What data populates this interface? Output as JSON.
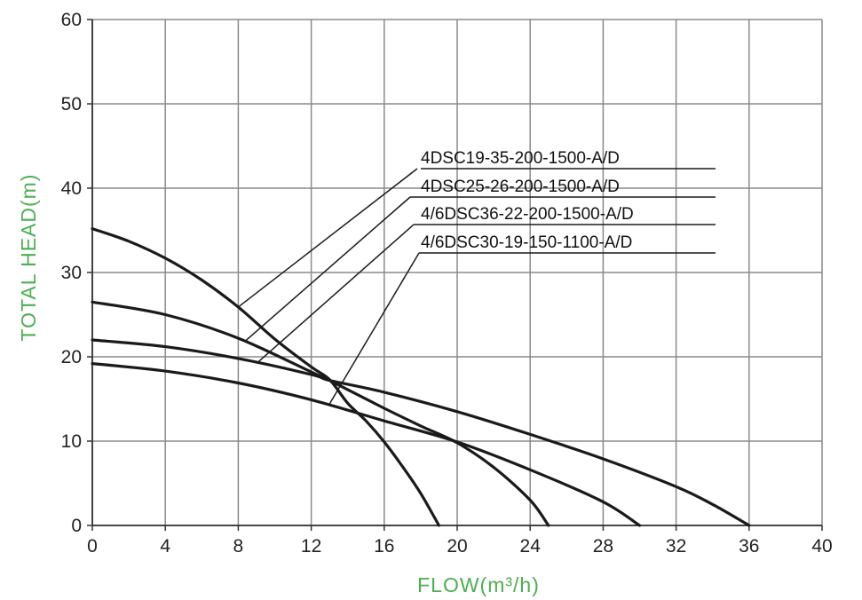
{
  "colors": {
    "axis_title": "#4caf50",
    "grid": "#8a8a8a",
    "curve": "#1a1a1a",
    "text": "#222222"
  },
  "chart_data": {
    "type": "line",
    "xlabel": "FLOW(m³/h)",
    "ylabel": "TOTAL HEAD(m)",
    "xlim": [
      0,
      40
    ],
    "ylim": [
      0,
      60
    ],
    "x_ticks": [
      0,
      4,
      8,
      12,
      16,
      20,
      24,
      28,
      32,
      36,
      40
    ],
    "y_ticks": [
      0,
      10,
      20,
      30,
      40,
      50,
      60
    ],
    "grid": true,
    "legend_placement": "callout labels, upper-middle",
    "series": [
      {
        "name": "4DSC19-35-200-1500-A/D",
        "x": [
          0,
          2,
          4,
          6,
          8,
          10,
          12,
          13,
          14,
          15,
          16,
          17,
          18,
          19
        ],
        "y": [
          35.2,
          33.7,
          31.7,
          29.1,
          25.9,
          22.1,
          18.8,
          17.3,
          14.5,
          12.4,
          9.9,
          7.0,
          3.8,
          0
        ]
      },
      {
        "name": "4DSC25-26-200-1500-A/D",
        "x": [
          0,
          4,
          8,
          12,
          13,
          16,
          18,
          20,
          22,
          24,
          25
        ],
        "y": [
          26.5,
          25.0,
          22.2,
          18.2,
          17.2,
          13.9,
          11.8,
          9.8,
          6.9,
          3.0,
          0
        ]
      },
      {
        "name": "4/6DSC36-22-200-1500-A/D",
        "x": [
          0,
          4,
          8,
          12,
          13,
          16,
          20,
          24,
          28,
          32,
          34,
          36
        ],
        "y": [
          22.0,
          21.2,
          19.8,
          17.9,
          17.2,
          15.8,
          13.5,
          10.8,
          7.9,
          4.6,
          2.5,
          0
        ]
      },
      {
        "name": "4/6DSC30-19-150-1100-A/D",
        "x": [
          0,
          4,
          8,
          12,
          16,
          20,
          24,
          28,
          30
        ],
        "y": [
          19.2,
          18.3,
          16.9,
          14.9,
          12.4,
          9.9,
          6.6,
          2.8,
          0
        ]
      }
    ],
    "callouts": [
      {
        "series": 0,
        "anchor_x": 8.0,
        "anchor_y": 25.9
      },
      {
        "series": 1,
        "anchor_x": 8.4,
        "anchor_y": 21.9
      },
      {
        "series": 2,
        "anchor_x": 9.1,
        "anchor_y": 19.4
      },
      {
        "series": 3,
        "anchor_x": 13.0,
        "anchor_y": 14.4
      }
    ]
  }
}
